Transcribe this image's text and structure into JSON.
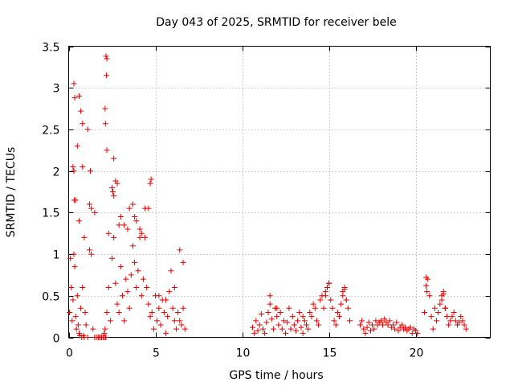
{
  "chart_data": {
    "type": "scatter",
    "title": "Day 043 of 2025, SRMTID for receiver bele",
    "xlabel": "GPS time / hours",
    "ylabel": "SRMTID / TECUs",
    "xlim": [
      0,
      24.3
    ],
    "ylim": [
      0,
      3.5
    ],
    "xticks": [
      0,
      5,
      10,
      15,
      20
    ],
    "yticks": [
      0,
      0.5,
      1,
      1.5,
      2,
      2.5,
      3,
      3.5
    ],
    "xtick_labels": [
      "0",
      "5",
      "10",
      "15",
      "20"
    ],
    "ytick_labels": [
      "0",
      "0.5",
      "1",
      "1.5",
      "2",
      "2.5",
      "3",
      "3.5"
    ],
    "grid": true,
    "marker": "+",
    "color": "#e00000",
    "series": [
      {
        "name": "SRMTID",
        "x": [
          0.05,
          0.1,
          0.15,
          0.2,
          0.25,
          0.3,
          0.35,
          0.4,
          0.45,
          0.5,
          0.55,
          0.6,
          0.65,
          0.7,
          0.75,
          0.8,
          0.85,
          0.9,
          0.95,
          1.0,
          1.1,
          1.2,
          1.3,
          1.4,
          1.5,
          1.6,
          1.7,
          1.8,
          1.9,
          2.0,
          2.05,
          2.1,
          2.15,
          2.2,
          2.3,
          2.4,
          2.5,
          2.6,
          2.7,
          2.8,
          2.9,
          3.0,
          3.1,
          3.2,
          3.3,
          3.4,
          3.5,
          3.6,
          3.7,
          3.8,
          3.9,
          4.0,
          4.1,
          4.2,
          4.3,
          4.4,
          4.5,
          4.6,
          4.7,
          4.8,
          4.9,
          5.0,
          5.1,
          5.2,
          5.3,
          5.4,
          5.5,
          5.6,
          5.7,
          5.8,
          5.9,
          6.0,
          6.1,
          6.2,
          6.3,
          6.4,
          6.5,
          6.6,
          6.7,
          0.3,
          0.35,
          0.5,
          0.6,
          0.7,
          0.8,
          1.1,
          1.3,
          2.15,
          2.2,
          2.18,
          2.1,
          2.12,
          2.6,
          2.7,
          2.8,
          0.25,
          0.3,
          0.32,
          0.8,
          1.2,
          1.25,
          2.5,
          2.55,
          2.6,
          3.0,
          3.2,
          3.5,
          3.7,
          3.9,
          4.2,
          4.4,
          4.7,
          4.75,
          0.4,
          0.6,
          0.9,
          1.5,
          2.3,
          2.9,
          3.4,
          3.8,
          4.1,
          4.6,
          5.2,
          5.6,
          6.1,
          6.4,
          6.6,
          1.7,
          1.8,
          1.9,
          2.0,
          2.1,
          2.2,
          10.6,
          10.7,
          10.8,
          10.9,
          11.0,
          11.1,
          11.2,
          11.3,
          11.4,
          11.5,
          11.6,
          11.7,
          11.8,
          11.9,
          12.0,
          12.1,
          12.2,
          12.3,
          12.4,
          12.5,
          12.6,
          12.7,
          12.8,
          12.9,
          13.0,
          13.1,
          13.2,
          13.3,
          13.4,
          13.5,
          13.6,
          13.7,
          13.8,
          13.9,
          14.0,
          14.1,
          14.2,
          14.3,
          14.4,
          14.5,
          14.6,
          14.7,
          14.8,
          14.9,
          15.0,
          15.1,
          15.2,
          15.3,
          15.4,
          15.5,
          15.6,
          15.7,
          15.8,
          15.9,
          16.0,
          16.1,
          16.2,
          16.8,
          16.9,
          17.0,
          17.1,
          17.2,
          17.3,
          17.4,
          17.5,
          17.6,
          17.7,
          17.8,
          17.9,
          18.0,
          18.1,
          18.2,
          18.3,
          18.4,
          18.5,
          18.6,
          18.7,
          18.8,
          18.9,
          19.0,
          19.1,
          19.2,
          19.3,
          19.4,
          19.5,
          19.6,
          19.7,
          19.8,
          19.9,
          20.0,
          20.1,
          20.5,
          20.6,
          20.7,
          20.8,
          20.9,
          21.0,
          21.1,
          21.2,
          21.3,
          21.4,
          21.5,
          21.6,
          21.7,
          21.8,
          21.9,
          22.0,
          22.1,
          22.2,
          22.3,
          22.4,
          22.5,
          22.6,
          22.7,
          22.8,
          22.9,
          11.6,
          12.0,
          12.2,
          13.5,
          14.8,
          14.9,
          15.0,
          15.8,
          15.9,
          16.0,
          20.6,
          20.65,
          21.5,
          21.6,
          21.7
        ],
        "y": [
          0.3,
          0.95,
          0.6,
          0.2,
          0.45,
          1.0,
          0.85,
          0.25,
          0.1,
          0.5,
          0.15,
          0.05,
          0.02,
          0.35,
          0.0,
          0.6,
          0.02,
          0.0,
          0.3,
          0.15,
          0.0,
          1.05,
          1.0,
          0.1,
          0.0,
          0.0,
          0.0,
          0.0,
          0.0,
          0.0,
          0.05,
          0.1,
          0.0,
          0.3,
          0.6,
          0.2,
          0.95,
          1.2,
          0.65,
          0.4,
          0.3,
          0.85,
          0.5,
          0.2,
          0.7,
          0.55,
          0.35,
          0.75,
          1.1,
          0.9,
          0.6,
          0.8,
          1.3,
          0.5,
          0.7,
          1.2,
          0.6,
          0.4,
          0.25,
          0.3,
          0.1,
          0.5,
          0.2,
          0.35,
          0.15,
          0.45,
          0.3,
          0.05,
          0.25,
          0.55,
          0.8,
          0.35,
          0.2,
          0.1,
          0.3,
          0.2,
          0.15,
          0.35,
          0.1,
          3.05,
          2.88,
          2.3,
          2.9,
          2.72,
          2.57,
          2.5,
          1.55,
          3.38,
          3.35,
          3.15,
          2.75,
          2.57,
          2.15,
          1.88,
          1.85,
          2.05,
          2.0,
          1.65,
          2.05,
          1.6,
          2.0,
          1.8,
          1.75,
          1.7,
          1.45,
          1.35,
          1.55,
          1.6,
          1.4,
          1.25,
          1.55,
          1.85,
          1.9,
          1.65,
          1.4,
          1.2,
          1.5,
          1.25,
          1.35,
          1.3,
          1.45,
          1.2,
          1.55,
          0.5,
          0.45,
          0.6,
          1.05,
          0.9,
          0.0,
          0.0,
          0.0,
          0.0,
          0.0,
          2.25,
          0.12,
          0.05,
          0.2,
          0.08,
          0.15,
          0.28,
          0.1,
          0.05,
          0.18,
          0.3,
          0.4,
          0.22,
          0.1,
          0.35,
          0.25,
          0.15,
          0.3,
          0.1,
          0.2,
          0.05,
          0.18,
          0.35,
          0.1,
          0.25,
          0.15,
          0.08,
          0.2,
          0.3,
          0.12,
          0.05,
          0.2,
          0.15,
          0.1,
          0.3,
          0.25,
          0.4,
          0.35,
          0.2,
          0.15,
          0.45,
          0.5,
          0.35,
          0.55,
          0.6,
          0.65,
          0.45,
          0.35,
          0.2,
          0.15,
          0.3,
          0.25,
          0.4,
          0.5,
          0.58,
          0.45,
          0.35,
          0.2,
          0.15,
          0.2,
          0.1,
          0.05,
          0.12,
          0.18,
          0.08,
          0.15,
          0.1,
          0.2,
          0.15,
          0.18,
          0.2,
          0.15,
          0.22,
          0.18,
          0.15,
          0.2,
          0.12,
          0.15,
          0.1,
          0.18,
          0.08,
          0.12,
          0.15,
          0.1,
          0.12,
          0.08,
          0.1,
          0.12,
          0.05,
          0.1,
          0.08,
          0.05,
          0.3,
          0.62,
          0.7,
          0.5,
          0.25,
          0.1,
          0.35,
          0.2,
          0.3,
          0.4,
          0.45,
          0.55,
          0.35,
          0.25,
          0.15,
          0.2,
          0.25,
          0.3,
          0.2,
          0.15,
          0.18,
          0.25,
          0.2,
          0.15,
          0.1,
          0.5,
          0.35,
          0.3,
          0.25,
          0.5,
          0.6,
          0.65,
          0.55,
          0.6,
          0.45,
          0.72,
          0.55,
          0.5,
          0.52,
          0.35
        ]
      }
    ]
  }
}
